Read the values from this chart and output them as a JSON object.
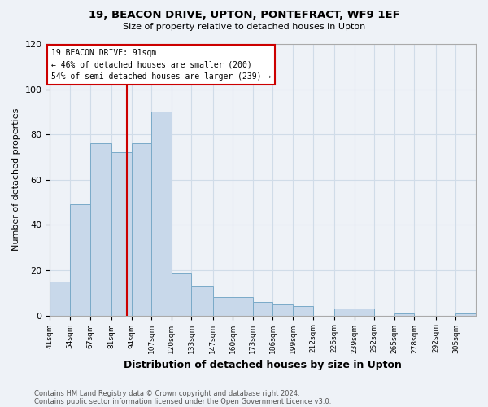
{
  "title1": "19, BEACON DRIVE, UPTON, PONTEFRACT, WF9 1EF",
  "title2": "Size of property relative to detached houses in Upton",
  "xlabel": "Distribution of detached houses by size in Upton",
  "ylabel": "Number of detached properties",
  "footnote1": "Contains HM Land Registry data © Crown copyright and database right 2024.",
  "footnote2": "Contains public sector information licensed under the Open Government Licence v3.0.",
  "bin_labels": [
    "41sqm",
    "54sqm",
    "67sqm",
    "81sqm",
    "94sqm",
    "107sqm",
    "120sqm",
    "133sqm",
    "147sqm",
    "160sqm",
    "173sqm",
    "186sqm",
    "199sqm",
    "212sqm",
    "226sqm",
    "239sqm",
    "252sqm",
    "265sqm",
    "278sqm",
    "292sqm",
    "305sqm"
  ],
  "bar_heights": [
    15,
    49,
    76,
    72,
    76,
    90,
    19,
    13,
    8,
    8,
    6,
    5,
    4,
    0,
    3,
    3,
    0,
    1,
    0,
    0,
    1
  ],
  "bar_color": "#c8d8ea",
  "bar_edgecolor": "#7aaac8",
  "grid_color": "#d0dce8",
  "bg_color": "#eef2f7",
  "annotation_box_text": "19 BEACON DRIVE: 91sqm\n← 46% of detached houses are smaller (200)\n54% of semi-detached houses are larger (239) →",
  "vline_color": "#cc0000",
  "annotation_box_color": "#ffffff",
  "annotation_box_edgecolor": "#cc0000",
  "ylim": [
    0,
    120
  ],
  "yticks": [
    0,
    20,
    40,
    60,
    80,
    100,
    120
  ],
  "property_size": 91
}
